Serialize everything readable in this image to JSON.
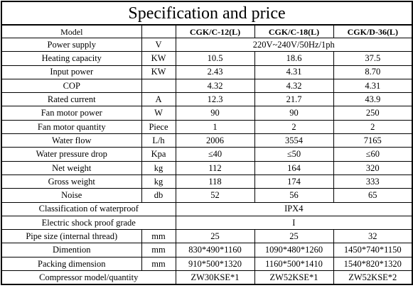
{
  "title": "Specification and price",
  "header": {
    "item": "Model",
    "unit": "",
    "models": [
      "CGK/C-12(L)",
      "CGK/C-18(L)",
      "CGK/D-36(L)"
    ]
  },
  "rows": [
    {
      "label": "Power supply",
      "unit": "V",
      "values": [
        "220V~240V/50Hz/1ph"
      ],
      "merged": true
    },
    {
      "label": "Heating capacity",
      "unit": "KW",
      "values": [
        "10.5",
        "18.6",
        "37.5"
      ]
    },
    {
      "label": "Input power",
      "unit": "KW",
      "values": [
        "2.43",
        "4.31",
        "8.70"
      ]
    },
    {
      "label": "COP",
      "unit": "",
      "values": [
        "4.32",
        "4.32",
        "4.31"
      ]
    },
    {
      "label": "Rated current",
      "unit": "A",
      "values": [
        "12.3",
        "21.7",
        "43.9"
      ]
    },
    {
      "label": "Fan motor power",
      "unit": "W",
      "values": [
        "90",
        "90",
        "250"
      ]
    },
    {
      "label": "Fan motor quantity",
      "unit": "Piece",
      "values": [
        "1",
        "2",
        "2"
      ]
    },
    {
      "label": "Water flow",
      "unit": "L/h",
      "values": [
        "2006",
        "3554",
        "7165"
      ]
    },
    {
      "label": "Water pressure drop",
      "unit": "Kpa",
      "values": [
        "≤40",
        "≤50",
        "≤60"
      ]
    },
    {
      "label": "Net weight",
      "unit": "kg",
      "values": [
        "112",
        "164",
        "320"
      ]
    },
    {
      "label": "Gross weight",
      "unit": "kg",
      "values": [
        "118",
        "174",
        "333"
      ]
    },
    {
      "label": "Noise",
      "unit": "db",
      "values": [
        "52",
        "56",
        "65"
      ]
    },
    {
      "label": "Classification of waterproof",
      "unit": "",
      "values": [
        "IPX4"
      ],
      "merged": true,
      "label_span": 2
    },
    {
      "label": "Electric shock proof grade",
      "unit": "",
      "values": [
        "I"
      ],
      "merged": true,
      "label_span": 2
    },
    {
      "label": "Pipe size (internal thread)",
      "unit": "mm",
      "values": [
        "25",
        "25",
        "32"
      ]
    },
    {
      "label": "Dimention",
      "unit": "mm",
      "values": [
        "830*490*1160",
        "1090*480*1260",
        "1450*740*1150"
      ]
    },
    {
      "label": "Packing dimension",
      "unit": "mm",
      "values": [
        "910*500*1320",
        "1160*500*1410",
        "1540*820*1320"
      ]
    },
    {
      "label": "Compressor model/quantity",
      "unit": "",
      "values": [
        "ZW30KSE*1",
        "ZW52KSE*1",
        "ZW52KSE*2"
      ],
      "label_span": 2
    }
  ]
}
